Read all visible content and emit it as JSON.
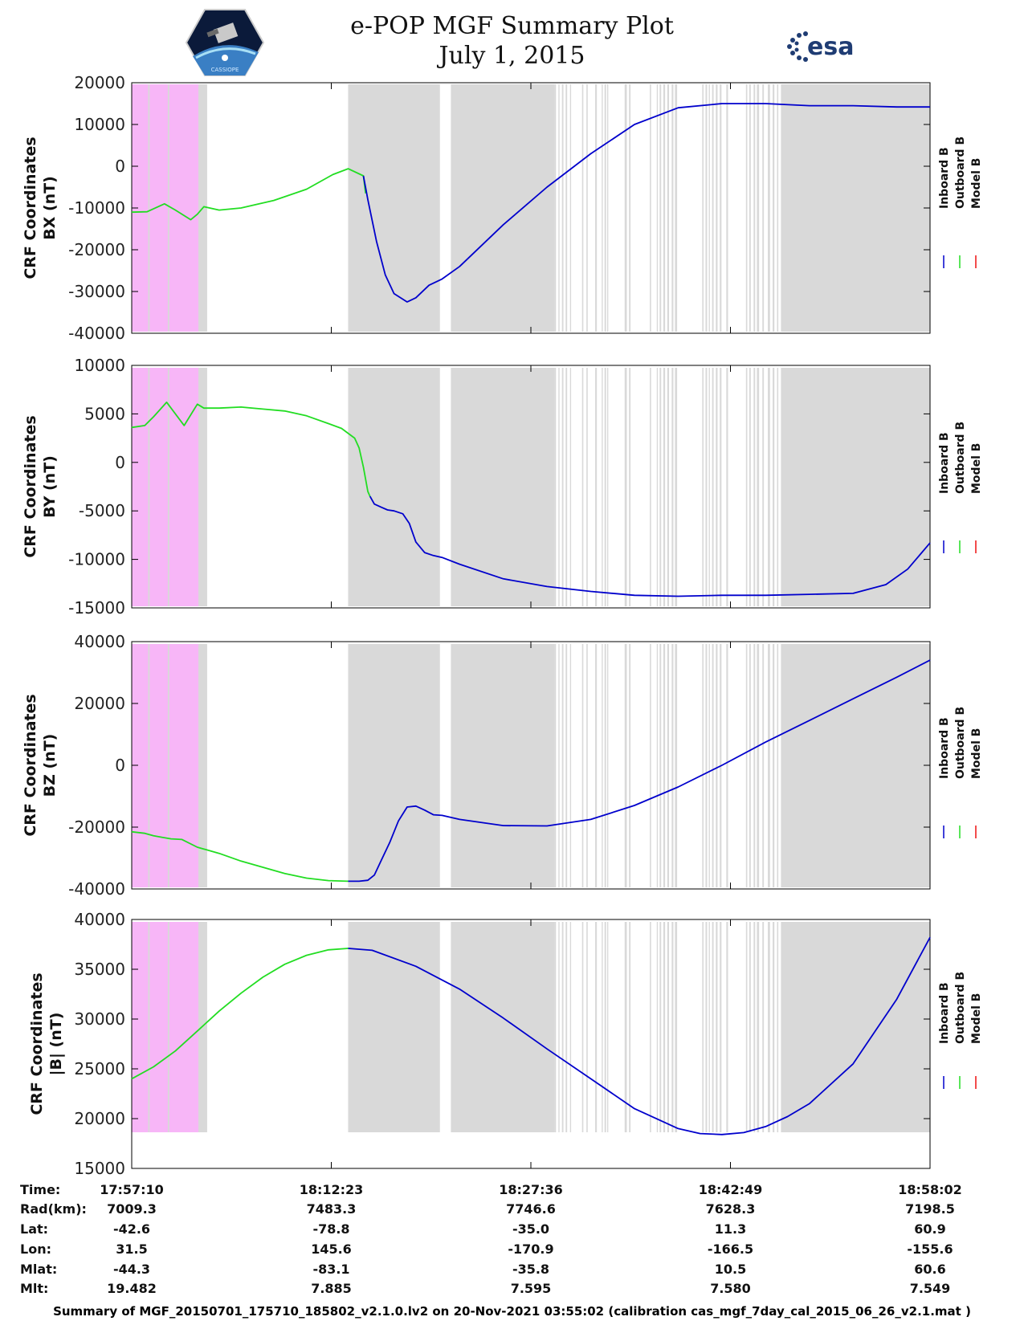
{
  "header": {
    "title": "e-POP MGF Summary Plot",
    "date": "July 1, 2015",
    "logo_left": "CASSIOPE",
    "logo_right": "esa"
  },
  "colors": {
    "inboard": "#0000cc",
    "outboard": "#22dd22",
    "model": "#ee1111",
    "gap_gray": "#d9d9d9",
    "pink": "#f7b6f7"
  },
  "legend": [
    "Inboard B",
    "Outboard B",
    "Model B"
  ],
  "chart_data": [
    {
      "type": "line",
      "ylabel": [
        "CRF Coordinates",
        "BX (nT)"
      ],
      "ylim": [
        -40000,
        20000
      ],
      "yticks": [
        20000,
        10000,
        0,
        -10000,
        -20000,
        -30000,
        -40000
      ],
      "x_unit": "seconds since 17:57:10",
      "xlim": [
        0,
        3652
      ],
      "series": [
        {
          "name": "Outboard B",
          "x": [
            0,
            70,
            150,
            200,
            270,
            300,
            330,
            400,
            500,
            650,
            800,
            920,
            990,
            1060,
            1070
          ],
          "y": [
            -11000,
            -10900,
            -9000,
            -10500,
            -12800,
            -11500,
            -9700,
            -10500,
            -10000,
            -8200,
            -5500,
            -2000,
            -600,
            -2300,
            -6500
          ]
        },
        {
          "name": "Inboard B",
          "x": [
            1060,
            1080,
            1120,
            1160,
            1200,
            1260,
            1300,
            1360,
            1420,
            1500,
            1700,
            1900,
            2100,
            2300,
            2500,
            2700,
            2900,
            3100,
            3300,
            3500,
            3652
          ],
          "y": [
            -2300,
            -8000,
            -18000,
            -26000,
            -30500,
            -32500,
            -31500,
            -28500,
            -27000,
            -24000,
            -14000,
            -5000,
            3000,
            10000,
            14000,
            15000,
            15000,
            14500,
            14500,
            14200,
            14200
          ]
        }
      ]
    },
    {
      "type": "line",
      "ylabel": [
        "CRF Coordinates",
        "BY (nT)"
      ],
      "ylim": [
        -15000,
        10000
      ],
      "yticks": [
        10000,
        5000,
        0,
        -5000,
        -10000,
        -15000
      ],
      "x_unit": "seconds since 17:57:10",
      "xlim": [
        0,
        3652
      ],
      "series": [
        {
          "name": "Outboard B",
          "x": [
            0,
            60,
            100,
            160,
            240,
            300,
            330,
            400,
            500,
            600,
            700,
            800,
            900,
            960,
            990,
            1020,
            1040,
            1060,
            1080,
            1090
          ],
          "y": [
            3600,
            3800,
            4700,
            6200,
            3800,
            6000,
            5600,
            5600,
            5700,
            5500,
            5300,
            4800,
            4000,
            3500,
            3000,
            2500,
            1500,
            -500,
            -3000,
            -3500
          ]
        },
        {
          "name": "Inboard B",
          "x": [
            1090,
            1110,
            1140,
            1170,
            1200,
            1240,
            1270,
            1300,
            1340,
            1380,
            1420,
            1500,
            1700,
            1900,
            2100,
            2300,
            2500,
            2700,
            2900,
            3100,
            3300,
            3450,
            3550,
            3652
          ],
          "y": [
            -3500,
            -4300,
            -4600,
            -4900,
            -5000,
            -5300,
            -6300,
            -8200,
            -9300,
            -9600,
            -9800,
            -10500,
            -12000,
            -12800,
            -13300,
            -13700,
            -13800,
            -13700,
            -13700,
            -13600,
            -13500,
            -12600,
            -11000,
            -8300
          ]
        }
      ]
    },
    {
      "type": "line",
      "ylabel": [
        "CRF Coordinates",
        "BZ (nT)"
      ],
      "ylim": [
        -40000,
        40000
      ],
      "yticks": [
        40000,
        20000,
        0,
        -20000,
        -40000
      ],
      "x_unit": "seconds since 17:57:10",
      "xlim": [
        0,
        3652
      ],
      "series": [
        {
          "name": "Outboard B",
          "x": [
            0,
            60,
            100,
            140,
            180,
            230,
            300,
            400,
            500,
            600,
            700,
            800,
            900,
            990
          ],
          "y": [
            -21500,
            -22000,
            -22800,
            -23300,
            -23800,
            -24000,
            -26500,
            -28500,
            -31000,
            -33000,
            -35000,
            -36500,
            -37300,
            -37500
          ]
        },
        {
          "name": "Inboard B",
          "x": [
            990,
            1040,
            1080,
            1110,
            1140,
            1180,
            1220,
            1260,
            1300,
            1340,
            1380,
            1420,
            1500,
            1700,
            1900,
            2100,
            2300,
            2500,
            2700,
            2900,
            3100,
            3300,
            3500,
            3652
          ],
          "y": [
            -37500,
            -37500,
            -37200,
            -35500,
            -31000,
            -25000,
            -18000,
            -13500,
            -13200,
            -14500,
            -16000,
            -16200,
            -17500,
            -19500,
            -19600,
            -17500,
            -13000,
            -7000,
            0,
            7500,
            14500,
            21500,
            28500,
            34000
          ]
        }
      ]
    },
    {
      "type": "line",
      "ylabel": [
        "CRF Coordinates",
        "|B| (nT)"
      ],
      "ylim": [
        15000,
        40000
      ],
      "yticks": [
        40000,
        35000,
        30000,
        25000,
        20000,
        15000
      ],
      "x_unit": "seconds since 17:57:10",
      "xlim": [
        0,
        3652
      ],
      "series": [
        {
          "name": "Outboard B",
          "x": [
            0,
            100,
            200,
            300,
            400,
            500,
            600,
            700,
            800,
            900,
            990
          ],
          "y": [
            24000,
            25200,
            26800,
            28800,
            30800,
            32600,
            34200,
            35500,
            36400,
            36950,
            37100
          ]
        },
        {
          "name": "Inboard B",
          "x": [
            990,
            1100,
            1300,
            1500,
            1700,
            1900,
            2100,
            2300,
            2500,
            2600,
            2700,
            2800,
            2900,
            3000,
            3100,
            3300,
            3500,
            3652
          ],
          "y": [
            37100,
            36900,
            35300,
            33000,
            30100,
            27000,
            24000,
            21000,
            19000,
            18500,
            18400,
            18600,
            19200,
            20200,
            21500,
            25500,
            32000,
            38200
          ]
        }
      ]
    }
  ],
  "gray_spans_sec": [
    [
      0,
      345
    ],
    [
      990,
      1410
    ],
    [
      1460,
      1935
    ],
    [
      1935,
      1941
    ],
    [
      1952,
      1957
    ],
    [
      1968,
      1975
    ],
    [
      1985,
      1992
    ],
    [
      2005,
      2010
    ],
    [
      2060,
      2066
    ],
    [
      2080,
      2086
    ],
    [
      2120,
      2128
    ],
    [
      2150,
      2155
    ],
    [
      2163,
      2170
    ],
    [
      2175,
      2180
    ],
    [
      2255,
      2265
    ],
    [
      2275,
      2282
    ],
    [
      2370,
      2376
    ],
    [
      2402,
      2407
    ],
    [
      2415,
      2422
    ],
    [
      2432,
      2440
    ],
    [
      2450,
      2458
    ],
    [
      2470,
      2478
    ],
    [
      2485,
      2495
    ],
    [
      2610,
      2616
    ],
    [
      2625,
      2632
    ],
    [
      2640,
      2645
    ],
    [
      2655,
      2662
    ],
    [
      2672,
      2680
    ],
    [
      2690,
      2698
    ],
    [
      2720,
      2728
    ],
    [
      2810,
      2816
    ],
    [
      2825,
      2832
    ],
    [
      2845,
      2852
    ],
    [
      2860,
      2870
    ],
    [
      2885,
      2892
    ],
    [
      2910,
      2920
    ],
    [
      2932,
      2940
    ],
    [
      2952,
      2958
    ],
    [
      2970,
      3652
    ]
  ],
  "pink_spans_sec": [
    [
      0,
      75
    ],
    [
      82,
      165
    ],
    [
      172,
      305
    ]
  ],
  "orbit_table": {
    "labels": [
      "Time:",
      "Rad(km):",
      "Lat:",
      "Lon:",
      "Mlat:",
      "Mlt:"
    ],
    "columns": [
      [
        "17:57:10",
        "7009.3",
        "-42.6",
        "31.5",
        "-44.3",
        "19.482"
      ],
      [
        "18:12:23",
        "7483.3",
        "-78.8",
        "145.6",
        "-83.1",
        "7.885"
      ],
      [
        "18:27:36",
        "7746.6",
        "-35.0",
        "-170.9",
        "-35.8",
        "7.595"
      ],
      [
        "18:42:49",
        "7628.3",
        "11.3",
        "-166.5",
        "10.5",
        "7.580"
      ],
      [
        "18:58:02",
        "7198.5",
        "60.9",
        "-155.6",
        "60.6",
        "7.549"
      ]
    ]
  },
  "footer": "Summary of MGF_20150701_175710_185802_v2.1.0.lv2 on 20-Nov-2021 03:55:02 (calibration cas_mgf_7day_cal_2015_06_26_v2.1.mat )"
}
